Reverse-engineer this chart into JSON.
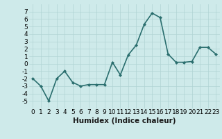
{
  "x": [
    0,
    1,
    2,
    3,
    4,
    5,
    6,
    7,
    8,
    9,
    10,
    11,
    12,
    13,
    14,
    15,
    16,
    17,
    18,
    19,
    20,
    21,
    22,
    23
  ],
  "y": [
    -2,
    -3,
    -5,
    -2,
    -1,
    -2.5,
    -3,
    -2.8,
    -2.8,
    -2.8,
    0.2,
    -1.5,
    1.2,
    2.5,
    5.3,
    6.8,
    6.2,
    1.3,
    0.2,
    0.2,
    0.3,
    2.2,
    2.2,
    1.3
  ],
  "line_color": "#2a6e6e",
  "marker": "D",
  "marker_size": 2.0,
  "marker_color": "#2a6e6e",
  "bg_color": "#ceeaea",
  "grid_color": "#b0d4d4",
  "xlabel": "Humidex (Indice chaleur)",
  "ylim": [
    -6,
    8
  ],
  "xlim": [
    -0.5,
    23.5
  ],
  "yticks": [
    -5,
    -4,
    -3,
    -2,
    -1,
    0,
    1,
    2,
    3,
    4,
    5,
    6,
    7
  ],
  "xticks": [
    0,
    1,
    2,
    3,
    4,
    5,
    6,
    7,
    8,
    9,
    10,
    11,
    12,
    13,
    14,
    15,
    16,
    17,
    18,
    19,
    20,
    21,
    22,
    23
  ],
  "xlabel_fontsize": 7.5,
  "tick_fontsize": 6.5,
  "linewidth": 1.2
}
